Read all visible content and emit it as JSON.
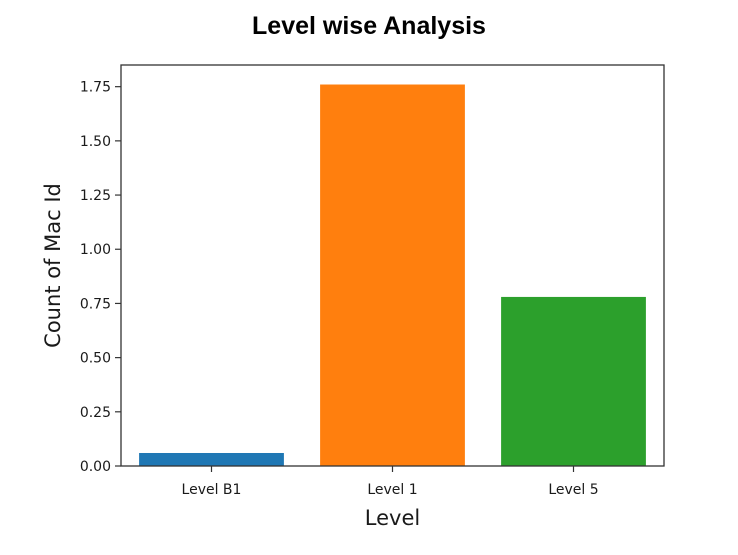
{
  "chart_data": {
    "type": "bar",
    "title": "Level wise Analysis",
    "xlabel": "Level",
    "ylabel": "Count of Mac Id",
    "categories": [
      "Level B1",
      "Level 1",
      "Level 5"
    ],
    "values": [
      0.06,
      1.76,
      0.78
    ],
    "colors": [
      "#1f77b4",
      "#ff7f0e",
      "#2ca02c"
    ],
    "ylim": [
      0,
      1.85
    ],
    "yticks": [
      0.0,
      0.25,
      0.5,
      0.75,
      1.0,
      1.25,
      1.5,
      1.75
    ],
    "ytick_labels": [
      "0.00",
      "0.25",
      "0.50",
      "0.75",
      "1.00",
      "1.25",
      "1.50",
      "1.75"
    ],
    "grid": false,
    "legend": "none"
  }
}
